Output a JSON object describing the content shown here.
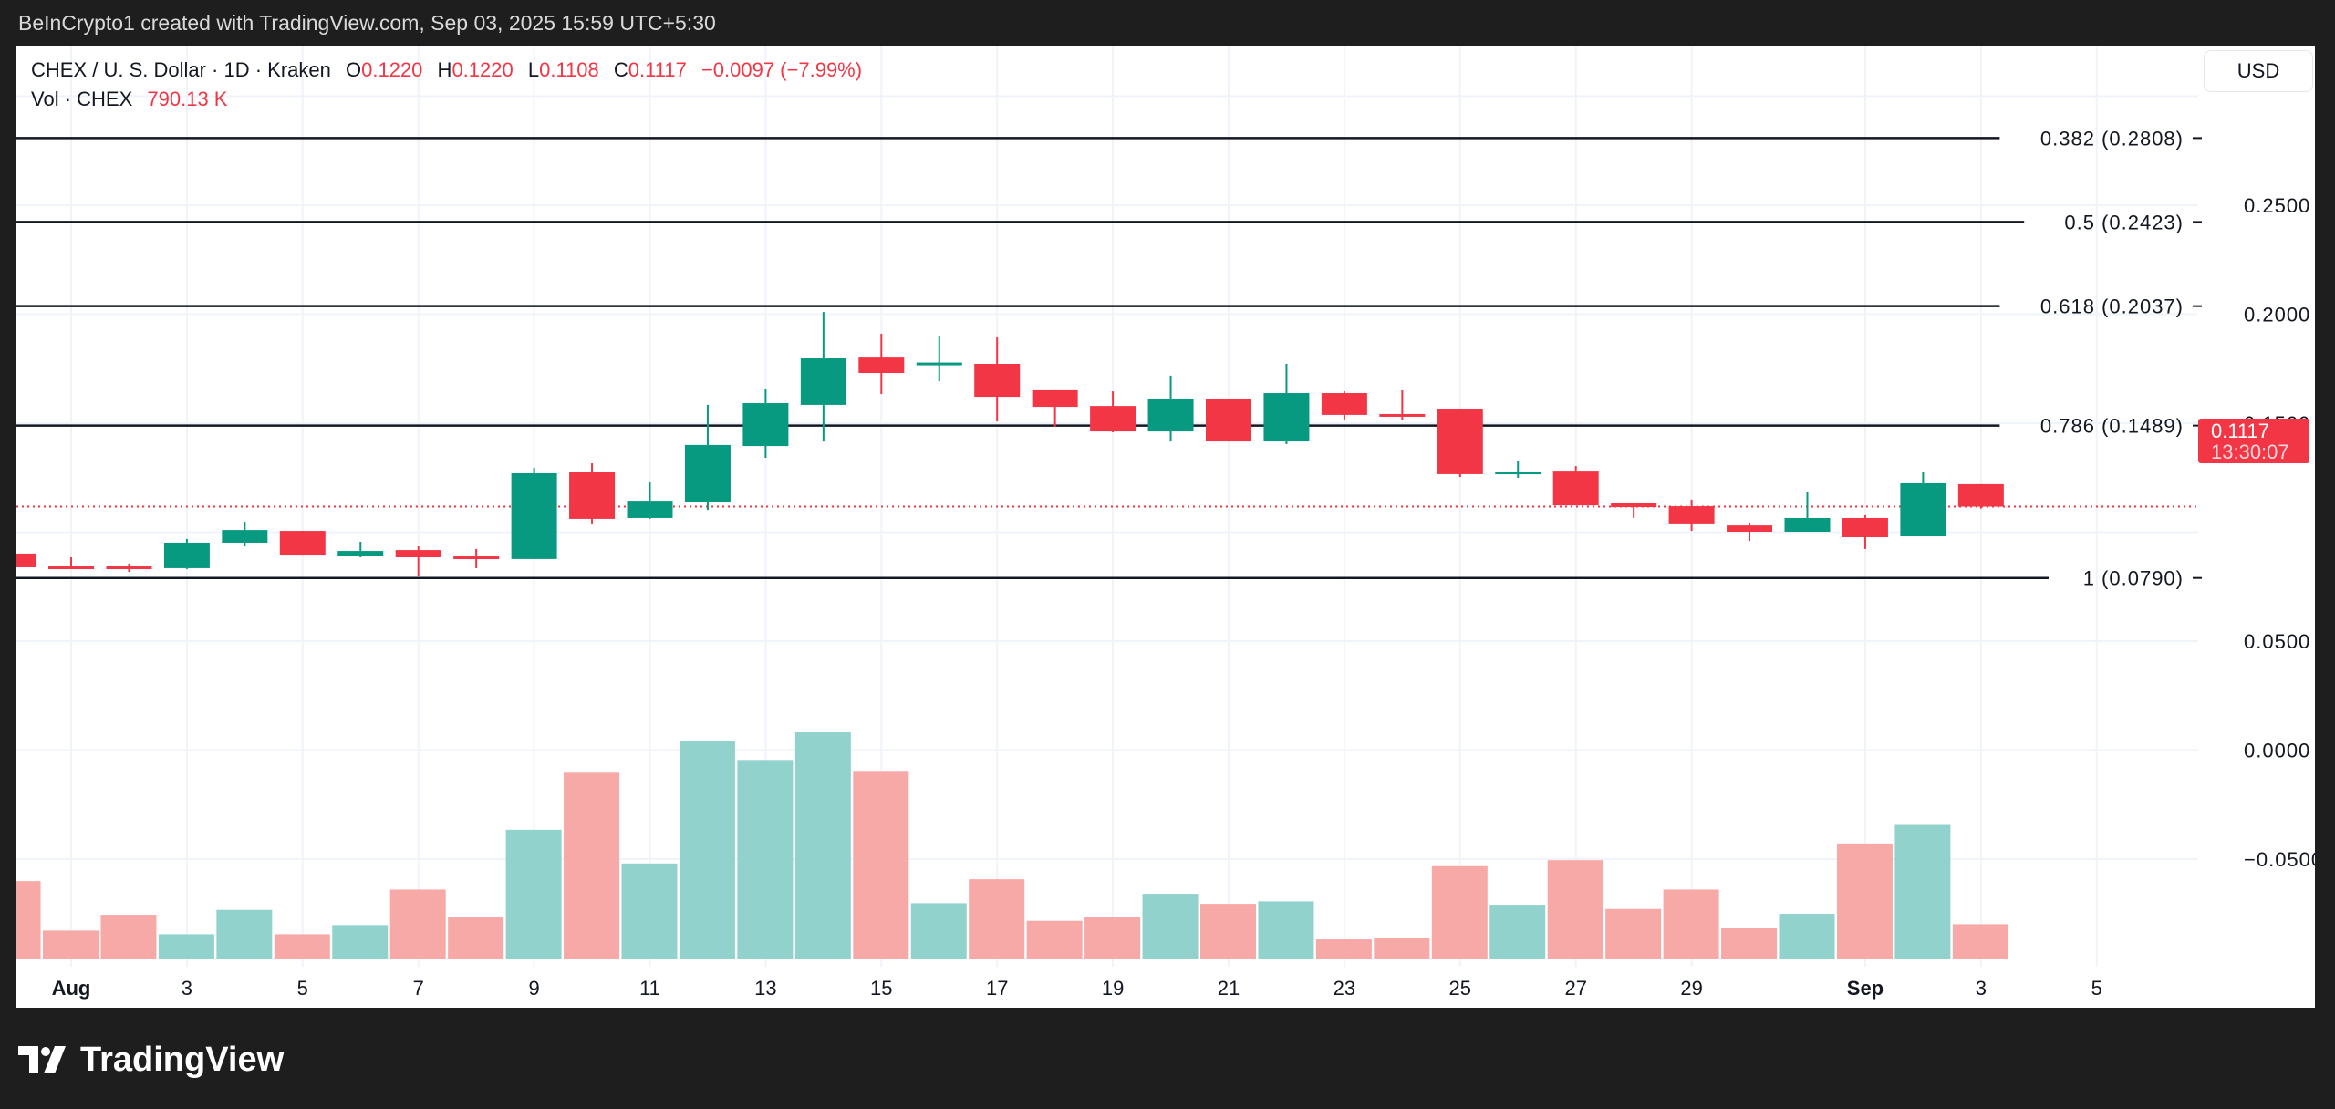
{
  "watermark": "BeInCrypto1 created with TradingView.com, Sep 03, 2025 15:59 UTC+5:30",
  "legend": {
    "symbol": "CHEX / U. S. Dollar · 1D · Kraken",
    "o_label": "O",
    "o": "0.1220",
    "h_label": "H",
    "h": "0.1220",
    "l_label": "L",
    "l": "0.1108",
    "c_label": "C",
    "c": "0.1117",
    "change": "−0.0097 (−7.99%)",
    "vol_label": "Vol · CHEX",
    "vol": "790.13 K"
  },
  "currency_button": "USD",
  "last_price_tag": {
    "price": "0.1117",
    "countdown": "13:30:07"
  },
  "logo_text": "TradingView",
  "colors": {
    "up": "#089981",
    "down": "#f23645",
    "vol_up": "#92d2cc",
    "vol_down": "#f7a9a7",
    "fib_line": "#131722"
  },
  "chart_data": {
    "type": "candlestick",
    "title": "",
    "y_ticks": [
      0.25,
      0.2,
      0.15,
      0.05,
      0.0,
      -0.05
    ],
    "y_tick_labels": [
      "0.2500",
      "0.2000",
      "0.1500",
      "0.0500",
      "0.0000",
      "−0.0500"
    ],
    "x_tick_labels": [
      {
        "date": "Aug 1",
        "label": "Aug",
        "bold": true
      },
      {
        "date": "Aug 3",
        "label": "3"
      },
      {
        "date": "Aug 5",
        "label": "5"
      },
      {
        "date": "Aug 7",
        "label": "7"
      },
      {
        "date": "Aug 9",
        "label": "9"
      },
      {
        "date": "Aug 11",
        "label": "11"
      },
      {
        "date": "Aug 13",
        "label": "13"
      },
      {
        "date": "Aug 15",
        "label": "15"
      },
      {
        "date": "Aug 17",
        "label": "17"
      },
      {
        "date": "Aug 19",
        "label": "19"
      },
      {
        "date": "Aug 21",
        "label": "21"
      },
      {
        "date": "Aug 23",
        "label": "23"
      },
      {
        "date": "Aug 25",
        "label": "25"
      },
      {
        "date": "Aug 27",
        "label": "27"
      },
      {
        "date": "Aug 29",
        "label": "29"
      },
      {
        "date": "Sep 1",
        "label": "Sep",
        "bold": true
      },
      {
        "date": "Sep 3",
        "label": "3"
      },
      {
        "date": "Sep 5",
        "label": "5"
      }
    ],
    "fib_levels": [
      {
        "ratio": "0.382",
        "price": 0.2808,
        "label": "0.382 (0.2808)"
      },
      {
        "ratio": "0.5",
        "price": 0.2423,
        "label": "0.5 (0.2423)"
      },
      {
        "ratio": "0.618",
        "price": 0.2037,
        "label": "0.618 (0.2037)"
      },
      {
        "ratio": "0.786",
        "price": 0.1489,
        "label": "0.786 (0.1489)"
      },
      {
        "ratio": "1",
        "price": 0.079,
        "label": "1 (0.0790)"
      }
    ],
    "last_price": 0.1117,
    "candles": [
      {
        "date": "Jul 31",
        "o": 0.0902,
        "h": 0.0902,
        "l": 0.0839,
        "c": 0.0839,
        "vol": 1757
      },
      {
        "date": "Aug 1",
        "o": 0.0843,
        "h": 0.0885,
        "l": 0.0831,
        "c": 0.0835,
        "vol": 647
      },
      {
        "date": "Aug 2",
        "o": 0.0843,
        "h": 0.0856,
        "l": 0.0818,
        "c": 0.0835,
        "vol": 1001
      },
      {
        "date": "Aug 3",
        "o": 0.0835,
        "h": 0.0969,
        "l": 0.0831,
        "c": 0.0952,
        "vol": 565
      },
      {
        "date": "Aug 4",
        "o": 0.0952,
        "h": 0.1048,
        "l": 0.0935,
        "c": 0.101,
        "vol": 1110
      },
      {
        "date": "Aug 5",
        "o": 0.1006,
        "h": 0.1006,
        "l": 0.0893,
        "c": 0.0893,
        "vol": 565
      },
      {
        "date": "Aug 6",
        "o": 0.0889,
        "h": 0.0956,
        "l": 0.0885,
        "c": 0.0914,
        "vol": 770
      },
      {
        "date": "Aug 7",
        "o": 0.0918,
        "h": 0.0935,
        "l": 0.0797,
        "c": 0.0885,
        "vol": 1566
      },
      {
        "date": "Aug 8",
        "o": 0.0889,
        "h": 0.0923,
        "l": 0.0835,
        "c": 0.0877,
        "vol": 960
      },
      {
        "date": "Aug 9",
        "o": 0.0877,
        "h": 0.1295,
        "l": 0.0877,
        "c": 0.127,
        "vol": 2908
      },
      {
        "date": "Aug 10",
        "o": 0.1278,
        "h": 0.1316,
        "l": 0.1036,
        "c": 0.1061,
        "vol": 4188
      },
      {
        "date": "Aug 11",
        "o": 0.1065,
        "h": 0.1228,
        "l": 0.1061,
        "c": 0.1144,
        "vol": 2152
      },
      {
        "date": "Aug 12",
        "o": 0.114,
        "h": 0.1584,
        "l": 0.1102,
        "c": 0.14,
        "vol": 4903
      },
      {
        "date": "Aug 13",
        "o": 0.1395,
        "h": 0.1655,
        "l": 0.1341,
        "c": 0.1592,
        "vol": 4474
      },
      {
        "date": "Aug 14",
        "o": 0.1584,
        "h": 0.201,
        "l": 0.1416,
        "c": 0.1797,
        "vol": 5094
      },
      {
        "date": "Aug 15",
        "o": 0.1805,
        "h": 0.191,
        "l": 0.1634,
        "c": 0.173,
        "vol": 4229
      },
      {
        "date": "Aug 16",
        "o": 0.1774,
        "h": 0.1902,
        "l": 0.1692,
        "c": 0.1778,
        "vol": 1260
      },
      {
        "date": "Aug 17",
        "o": 0.1772,
        "h": 0.1897,
        "l": 0.1508,
        "c": 0.1621,
        "vol": 1798
      },
      {
        "date": "Aug 18",
        "o": 0.1651,
        "h": 0.1651,
        "l": 0.1483,
        "c": 0.1575,
        "vol": 865
      },
      {
        "date": "Aug 19",
        "o": 0.1579,
        "h": 0.1646,
        "l": 0.1458,
        "c": 0.1462,
        "vol": 960
      },
      {
        "date": "Aug 20",
        "o": 0.1462,
        "h": 0.1718,
        "l": 0.1416,
        "c": 0.1613,
        "vol": 1471
      },
      {
        "date": "Aug 21",
        "o": 0.1609,
        "h": 0.1609,
        "l": 0.1416,
        "c": 0.1416,
        "vol": 1246
      },
      {
        "date": "Aug 22",
        "o": 0.1416,
        "h": 0.1772,
        "l": 0.1404,
        "c": 0.1638,
        "vol": 1301
      },
      {
        "date": "Aug 23",
        "o": 0.1638,
        "h": 0.1646,
        "l": 0.1513,
        "c": 0.1538,
        "vol": 449
      },
      {
        "date": "Aug 24",
        "o": 0.1542,
        "h": 0.1651,
        "l": 0.1517,
        "c": 0.1538,
        "vol": 490
      },
      {
        "date": "Aug 25",
        "o": 0.1567,
        "h": 0.1567,
        "l": 0.1253,
        "c": 0.1266,
        "vol": 2091
      },
      {
        "date": "Aug 26",
        "o": 0.1266,
        "h": 0.1328,
        "l": 0.1249,
        "c": 0.1278,
        "vol": 1226
      },
      {
        "date": "Aug 27",
        "o": 0.1282,
        "h": 0.1303,
        "l": 0.1123,
        "c": 0.1123,
        "vol": 2227
      },
      {
        "date": "Aug 28",
        "o": 0.1132,
        "h": 0.1132,
        "l": 0.1065,
        "c": 0.1115,
        "vol": 1130
      },
      {
        "date": "Aug 29",
        "o": 0.1119,
        "h": 0.1149,
        "l": 0.1006,
        "c": 0.1036,
        "vol": 1566
      },
      {
        "date": "Aug 30",
        "o": 0.1031,
        "h": 0.104,
        "l": 0.096,
        "c": 0.1002,
        "vol": 715
      },
      {
        "date": "Aug 31",
        "o": 0.1002,
        "h": 0.1182,
        "l": 0.1002,
        "c": 0.1065,
        "vol": 1022
      },
      {
        "date": "Sep 1",
        "o": 0.1065,
        "h": 0.1077,
        "l": 0.0923,
        "c": 0.0977,
        "vol": 2601
      },
      {
        "date": "Sep 2",
        "o": 0.0981,
        "h": 0.1274,
        "l": 0.0981,
        "c": 0.1224,
        "vol": 3017
      },
      {
        "date": "Sep 3",
        "o": 0.122,
        "h": 0.122,
        "l": 0.1108,
        "c": 0.1117,
        "vol": 790.13
      }
    ],
    "volume_unit": "K",
    "grid": true
  }
}
